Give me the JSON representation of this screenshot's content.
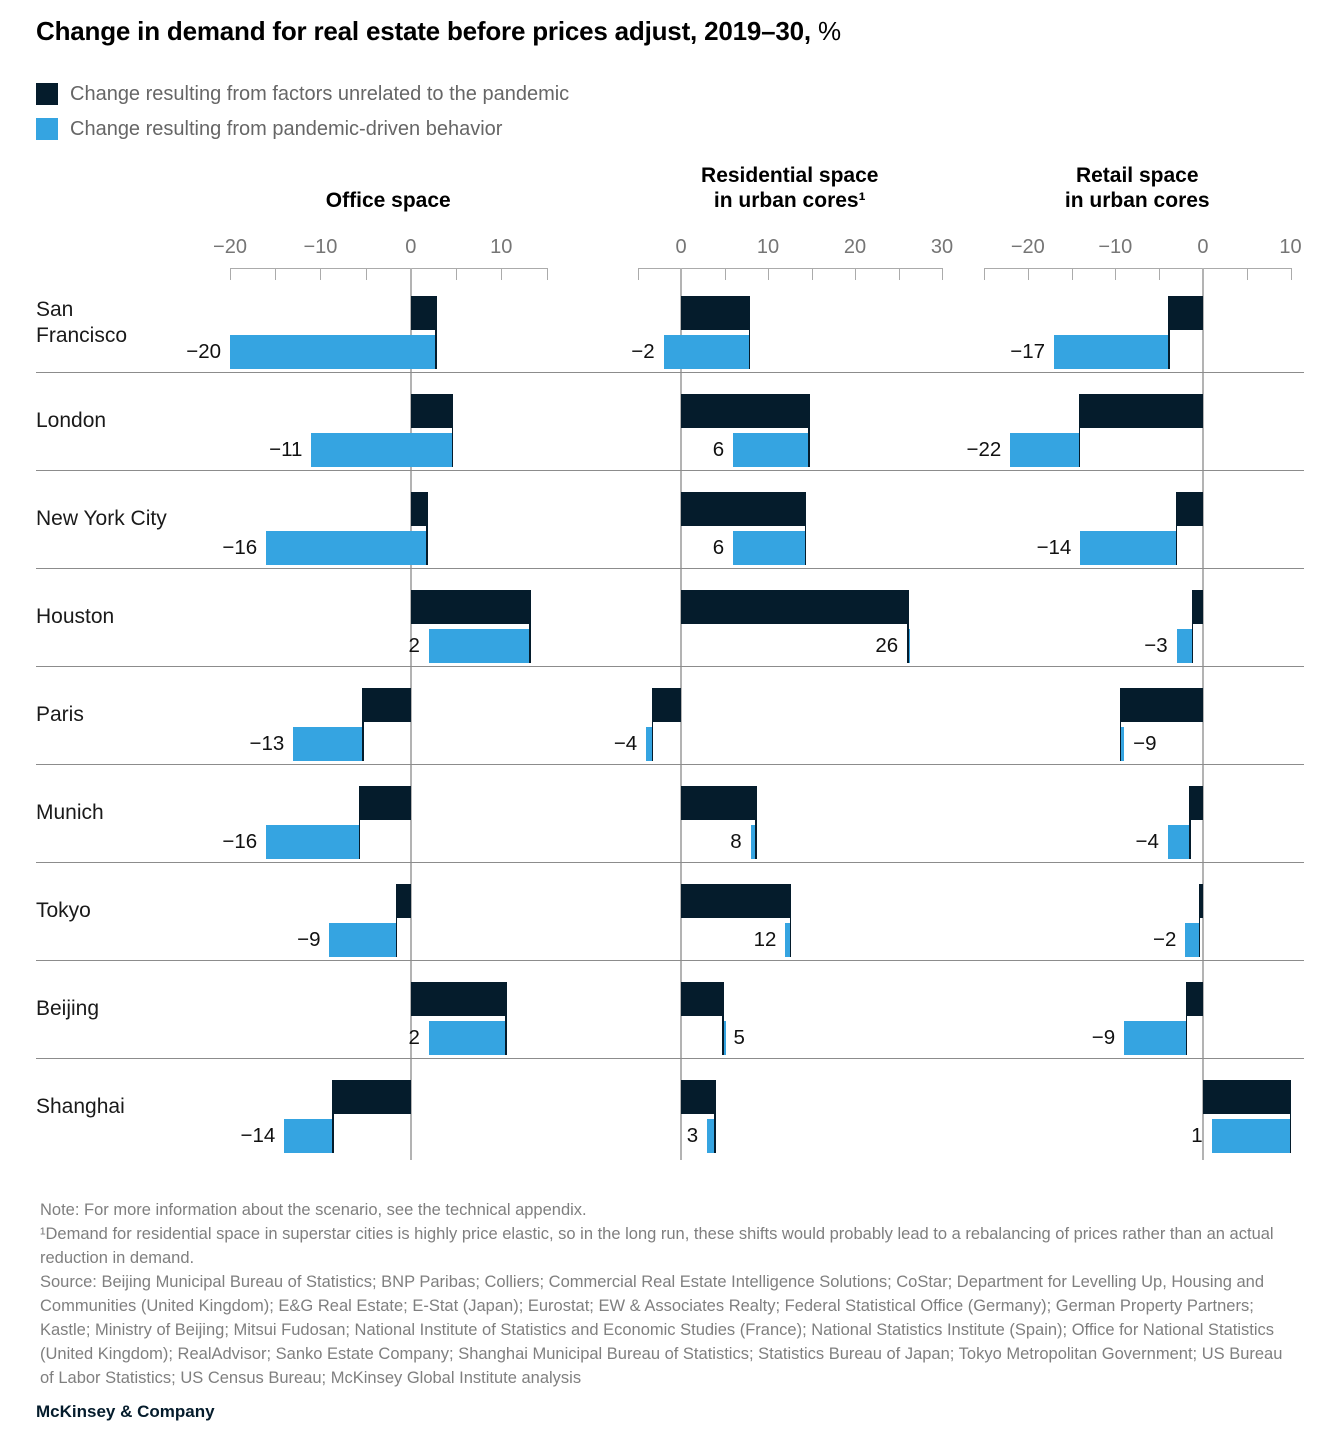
{
  "title": {
    "main": "Change in demand for real estate before prices adjust, 2019–30,",
    "unit": "%"
  },
  "colors": {
    "unrelated": "#051c2c",
    "pandemic": "#35a4e1",
    "axis": "#ababab",
    "separator": "#8c8c8c",
    "tick_text": "#757575",
    "note_text": "#7f7f7f"
  },
  "legend": [
    {
      "label": "Change resulting from factors unrelated to the pandemic",
      "color": "#051c2c"
    },
    {
      "label": "Change resulting from pandemic-driven behavior",
      "color": "#35a4e1"
    }
  ],
  "chart_data": {
    "type": "bar",
    "variant": "horizontal-waterfall",
    "note": "Dark bar spans 0 to unrelated; blue bar spans unrelated to net; printed label is the net value",
    "categories": [
      "San Francisco",
      "London",
      "New York City",
      "Houston",
      "Paris",
      "Munich",
      "Tokyo",
      "Beijing",
      "Shanghai"
    ],
    "panels": [
      {
        "key": "office",
        "title_lines": [
          "Office space"
        ],
        "domain": [
          -20,
          15
        ],
        "major_ticks": [
          -20,
          -10,
          0,
          10
        ],
        "minor_tick_step": 5,
        "rows": [
          {
            "city": "San\nFrancisco",
            "unrelated": 2.8,
            "net": -20,
            "pandemic": -22.8,
            "net_label": "−20"
          },
          {
            "city": "London",
            "unrelated": 4.6,
            "net": -11,
            "pandemic": -15.6,
            "net_label": "−11"
          },
          {
            "city": "New York City",
            "unrelated": 1.8,
            "net": -16,
            "pandemic": -17.8,
            "net_label": "−16"
          },
          {
            "city": "Houston",
            "unrelated": 13.2,
            "net": 2,
            "pandemic": -11.2,
            "net_label": "2"
          },
          {
            "city": "Paris",
            "unrelated": -5.3,
            "net": -13,
            "pandemic": -7.7,
            "net_label": "−13"
          },
          {
            "city": "Munich",
            "unrelated": -5.7,
            "net": -16,
            "pandemic": -10.3,
            "net_label": "−16"
          },
          {
            "city": "Tokyo",
            "unrelated": -1.6,
            "net": -9,
            "pandemic": -7.4,
            "net_label": "−9"
          },
          {
            "city": "Beijing",
            "unrelated": 10.5,
            "net": 2,
            "pandemic": -8.5,
            "net_label": "2"
          },
          {
            "city": "Shanghai",
            "unrelated": -8.6,
            "net": -14,
            "pandemic": -5.4,
            "net_label": "−14"
          }
        ]
      },
      {
        "key": "residential",
        "title_lines": [
          "Residential space",
          "in urban cores¹"
        ],
        "domain": [
          -5,
          30
        ],
        "major_ticks": [
          0,
          10,
          20,
          30
        ],
        "minor_tick_step": 5,
        "rows": [
          {
            "city": "San\nFrancisco",
            "unrelated": 7.9,
            "net": -2,
            "pandemic": -9.9,
            "net_label": "−2"
          },
          {
            "city": "London",
            "unrelated": 14.7,
            "net": 6,
            "pandemic": -8.7,
            "net_label": "6"
          },
          {
            "city": "New York City",
            "unrelated": 14.3,
            "net": 6,
            "pandemic": -8.3,
            "net_label": "6"
          },
          {
            "city": "Houston",
            "unrelated": 26.1,
            "net": 26,
            "pandemic": -0.1,
            "net_label": "26"
          },
          {
            "city": "Paris",
            "unrelated": -3.3,
            "net": -4,
            "pandemic": -0.7,
            "net_label": "−4"
          },
          {
            "city": "Munich",
            "unrelated": 8.6,
            "net": 8,
            "pandemic": -0.6,
            "net_label": "8"
          },
          {
            "city": "Tokyo",
            "unrelated": 12.6,
            "net": 12,
            "pandemic": -0.6,
            "net_label": "12"
          },
          {
            "city": "Beijing",
            "unrelated": 4.8,
            "net": 5,
            "pandemic": 0.2,
            "net_label": "5"
          },
          {
            "city": "Shanghai",
            "unrelated": 3.9,
            "net": 3,
            "pandemic": -0.9,
            "net_label": "3"
          }
        ]
      },
      {
        "key": "retail",
        "title_lines": [
          "Retail space",
          "in urban cores"
        ],
        "domain": [
          -25,
          10
        ],
        "major_ticks": [
          -20,
          -10,
          0,
          10
        ],
        "minor_tick_step": 5,
        "rows": [
          {
            "city": "San\nFrancisco",
            "unrelated": -3.9,
            "net": -17,
            "pandemic": -13.1,
            "net_label": "−17"
          },
          {
            "city": "London",
            "unrelated": -14.1,
            "net": -22,
            "pandemic": -7.9,
            "net_label": "−22"
          },
          {
            "city": "New York City",
            "unrelated": -3.0,
            "net": -14,
            "pandemic": -11.0,
            "net_label": "−14"
          },
          {
            "city": "Houston",
            "unrelated": -1.2,
            "net": -3,
            "pandemic": -1.8,
            "net_label": "−3"
          },
          {
            "city": "Paris",
            "unrelated": -9.4,
            "net": -9,
            "pandemic": 0.4,
            "net_label": "−9"
          },
          {
            "city": "Munich",
            "unrelated": -1.5,
            "net": -4,
            "pandemic": -2.5,
            "net_label": "−4"
          },
          {
            "city": "Tokyo",
            "unrelated": -0.4,
            "net": -2,
            "pandemic": -1.6,
            "net_label": "−2"
          },
          {
            "city": "Beijing",
            "unrelated": -1.9,
            "net": -9,
            "pandemic": -7.1,
            "net_label": "−9"
          },
          {
            "city": "Shanghai",
            "unrelated": 10.0,
            "net": 1,
            "pandemic": -9.0,
            "net_label": "1"
          }
        ]
      }
    ]
  },
  "footnotes": {
    "note": "Note: For more information about the scenario, see the technical appendix.",
    "footnote1": "¹Demand for residential space in superstar cities is highly price elastic, so in the long run, these shifts would probably lead to a rebalancing of prices rather than an actual reduction in demand.",
    "source": "Source: Beijing Municipal Bureau of Statistics; BNP Paribas; Colliers; Commercial Real Estate Intelligence Solutions; CoStar; Department for Levelling Up, Housing and Communities (United Kingdom); E&G Real Estate; E-Stat (Japan); Eurostat; EW & Associates Realty; Federal Statistical Office (Germany); German Property Partners; Kastle; Ministry of Beijing; Mitsui Fudosan; National Institute of Statistics and Economic Studies (France); National Statistics Institute (Spain); Office for National Statistics (United Kingdom); RealAdvisor; Sanko Estate Company; Shanghai Municipal Bureau of Statistics; Statistics Bureau of Japan; Tokyo Metropolitan Government; US Bureau of Labor Statistics; US Census Bureau; McKinsey Global Institute analysis"
  },
  "brand": "McKinsey & Company"
}
